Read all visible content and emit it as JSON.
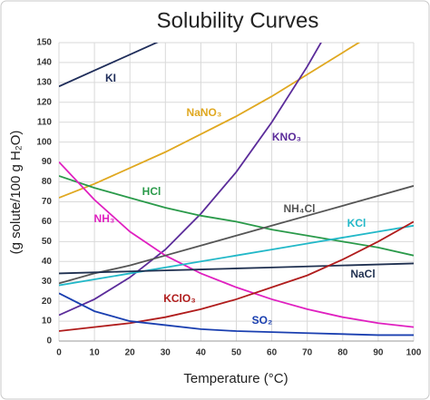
{
  "chart_data": {
    "type": "line",
    "title": "Solubility Curves",
    "x_label": "Temperature (°C)",
    "y_label": "(g solute/100 g H₂O)",
    "x": [
      0,
      10,
      20,
      30,
      40,
      50,
      60,
      70,
      80,
      90,
      100
    ],
    "xlim": [
      0,
      100
    ],
    "xticks": [
      0,
      10,
      20,
      30,
      40,
      50,
      60,
      70,
      80,
      90,
      100
    ],
    "ylim": [
      0,
      150
    ],
    "yticks": [
      0,
      10,
      20,
      30,
      40,
      50,
      60,
      70,
      80,
      90,
      100,
      110,
      120,
      130,
      140,
      150
    ],
    "grid": true,
    "series": [
      {
        "name": "KI",
        "color": "#1f2d5a",
        "values": [
          128,
          136,
          144,
          152,
          null,
          null,
          null,
          null,
          null,
          null,
          null
        ]
      },
      {
        "name": "NaNO₃",
        "color": "#e0a820",
        "values": [
          72,
          79,
          87,
          95,
          104,
          113,
          123,
          134,
          145,
          156,
          null
        ]
      },
      {
        "name": "KNO₃",
        "color": "#5b2c9a",
        "values": [
          13,
          21,
          32,
          46,
          64,
          85,
          110,
          138,
          169,
          null,
          null
        ]
      },
      {
        "name": "HCl",
        "color": "#2a9a4a",
        "values": [
          83,
          77,
          72,
          67,
          63,
          60,
          56,
          53,
          50,
          47,
          43
        ]
      },
      {
        "name": "NH₃",
        "color": "#e020c0",
        "values": [
          90,
          71,
          55,
          43,
          34,
          27,
          21,
          16,
          12,
          9,
          7
        ]
      },
      {
        "name": "NH₄Cl",
        "color": "#555555",
        "values": [
          29,
          34,
          38,
          43,
          48,
          53,
          58,
          63,
          68,
          73,
          78
        ]
      },
      {
        "name": "KCl",
        "color": "#22b8c8",
        "values": [
          28,
          31,
          34,
          37,
          40,
          43,
          46,
          49,
          52,
          55,
          58
        ]
      },
      {
        "name": "NaCl",
        "color": "#1f3050",
        "values": [
          34,
          34.5,
          35,
          35.5,
          36,
          36.5,
          37,
          37.5,
          38,
          38.5,
          39
        ]
      },
      {
        "name": "KClO₃",
        "color": "#b01c1c",
        "values": [
          5,
          7,
          9,
          12,
          16,
          21,
          27,
          33,
          41,
          50,
          60
        ]
      },
      {
        "name": "SO₂",
        "color": "#1a3fb0",
        "values": [
          24,
          15,
          10,
          8,
          6,
          5,
          4.5,
          4,
          3.5,
          3,
          3
        ]
      }
    ]
  }
}
